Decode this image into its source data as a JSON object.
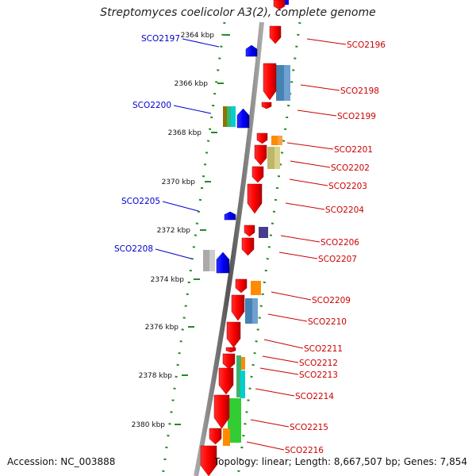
{
  "title": "Streptomyces coelicolor A3(2), complete genome",
  "accession": "Accession: NC_003888",
  "summary": "Topology: linear; Length: 8,667,507 bp; Genes: 7,854",
  "colors": {
    "forward": "#ff0000",
    "reverse": "#0000ff",
    "label_forward": "#cc0000",
    "label_reverse": "#0000cc",
    "tick": "#228b22"
  },
  "ruler": [
    {
      "label": "2364 kbp"
    },
    {
      "label": "2366 kbp"
    },
    {
      "label": "2368 kbp"
    },
    {
      "label": "2370 kbp"
    },
    {
      "label": "2372 kbp"
    },
    {
      "label": "2374 kbp"
    },
    {
      "label": "2376 kbp"
    },
    {
      "label": "2378 kbp"
    },
    {
      "label": "2380 kbp"
    }
  ],
  "genes_reverse": [
    {
      "label": "SCO2197"
    },
    {
      "label": "SCO2200"
    },
    {
      "label": "SCO2205"
    },
    {
      "label": "SCO2208"
    }
  ],
  "genes_forward": [
    {
      "label": "SCO2196"
    },
    {
      "label": "SCO2198"
    },
    {
      "label": "SCO2199"
    },
    {
      "label": "SCO2201"
    },
    {
      "label": "SCO2202"
    },
    {
      "label": "SCO2203"
    },
    {
      "label": "SCO2204"
    },
    {
      "label": "SCO2206"
    },
    {
      "label": "SCO2207"
    },
    {
      "label": "SCO2209"
    },
    {
      "label": "SCO2210"
    },
    {
      "label": "SCO2211"
    },
    {
      "label": "SCO2212"
    },
    {
      "label": "SCO2213"
    },
    {
      "label": "SCO2214"
    },
    {
      "label": "SCO2215"
    },
    {
      "label": "SCO2216"
    }
  ]
}
